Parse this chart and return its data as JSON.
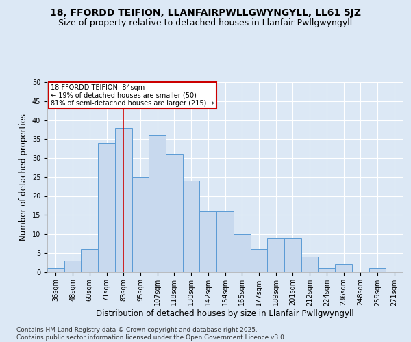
{
  "title": "18, FFORDD TEIFION, LLANFAIRPWLLGWYNGYLL, LL61 5JZ",
  "subtitle": "Size of property relative to detached houses in Llanfair Pwllgwyngyll",
  "xlabel": "Distribution of detached houses by size in Llanfair Pwllgwyngyll",
  "ylabel": "Number of detached properties",
  "footer": "Contains HM Land Registry data © Crown copyright and database right 2025.\nContains public sector information licensed under the Open Government Licence v3.0.",
  "bins": [
    "36sqm",
    "48sqm",
    "60sqm",
    "71sqm",
    "83sqm",
    "95sqm",
    "107sqm",
    "118sqm",
    "130sqm",
    "142sqm",
    "154sqm",
    "165sqm",
    "177sqm",
    "189sqm",
    "201sqm",
    "212sqm",
    "224sqm",
    "236sqm",
    "248sqm",
    "259sqm",
    "271sqm"
  ],
  "values": [
    1,
    3,
    6,
    34,
    38,
    25,
    36,
    31,
    24,
    16,
    16,
    10,
    6,
    9,
    9,
    4,
    1,
    2,
    0,
    1,
    0
  ],
  "bar_color": "#c8d9ee",
  "bar_edge_color": "#5b9bd5",
  "vline_x": 4,
  "vline_color": "#cc0000",
  "annotation_text": "18 FFORDD TEIFION: 84sqm\n← 19% of detached houses are smaller (50)\n81% of semi-detached houses are larger (215) →",
  "annotation_box_color": "#ffffff",
  "annotation_box_edge": "#cc0000",
  "ylim": [
    0,
    50
  ],
  "background_color": "#dce8f5",
  "plot_background": "#dce8f5",
  "grid_color": "#ffffff",
  "title_fontsize": 10,
  "subtitle_fontsize": 9,
  "axis_label_fontsize": 8.5,
  "tick_fontsize": 7,
  "footer_fontsize": 6.5
}
